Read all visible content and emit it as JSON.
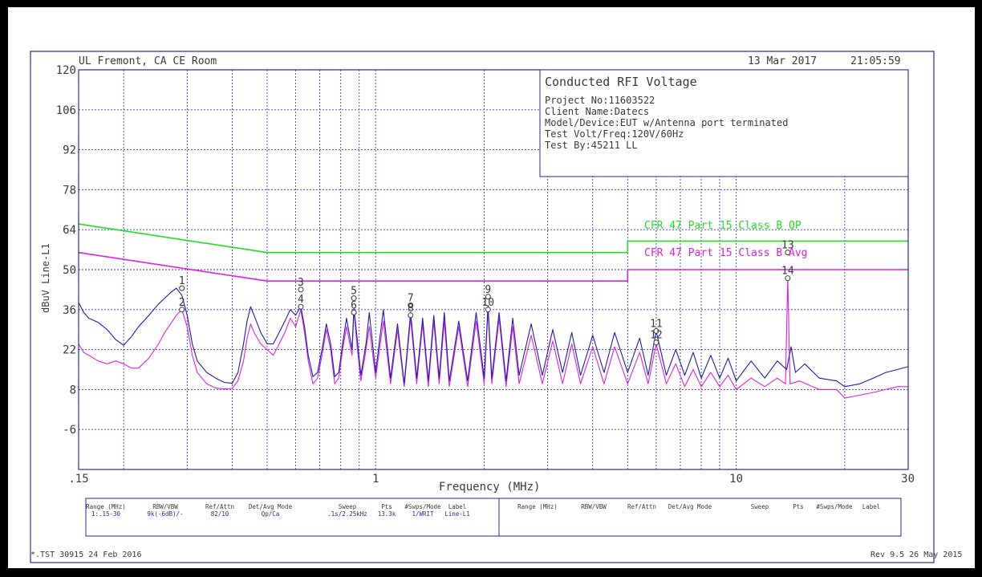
{
  "header": {
    "location": "UL Fremont, CA CE Room",
    "date": "13 Mar 2017",
    "time": "21:05:59"
  },
  "info_box": {
    "title": "Conducted RFI Voltage",
    "lines": [
      "Project No:11603522",
      "Client Name:Datecs",
      "Model/Device:EUT w/Antenna port terminated",
      "Test Volt/Freq:120V/60Hz",
      "Test By:45211 LL"
    ]
  },
  "footer": {
    "left": "*.TST 30915 24 Feb 2016",
    "right": "Rev 9.5 26 May 2015"
  },
  "settings_table": {
    "headers": [
      "Range (MHz)",
      "RBW/VBW",
      "Ref/Attn",
      "Det/Avg Mode",
      "Sweep",
      "Pts",
      "#Swps/Mode",
      "Label"
    ],
    "row": [
      "1:.15-30",
      "9k(-6dB)/-",
      "82/10",
      "Qp/Ca",
      ".1s/2.25kHz",
      "13.3k",
      "1/WRIT",
      "Line-L1"
    ],
    "headers_right": [
      "Range (MHz)",
      "RBW/VBW",
      "Ref/Attn",
      "Det/Avg Mode",
      "Sweep",
      "Pts",
      "#Swps/Mode",
      "Label"
    ]
  },
  "colors": {
    "background": "#ffffff",
    "frame": "#2a2a9a",
    "grid": "#3c3ccf",
    "qp_trace": "#1c1cb4",
    "avg_trace": "#e020e0",
    "qp_limit": "#1fe01f",
    "avg_limit": "#e020e0",
    "text": "#3a3a3a"
  },
  "chart_data": {
    "type": "line",
    "xlabel": "Frequency (MHz)",
    "ylabel": "dBuV Line-L1",
    "xscale": "log",
    "xlim": [
      0.15,
      30
    ],
    "ylim": [
      -20,
      120
    ],
    "x_tick_labels": [
      ".15",
      "1",
      "10",
      "30"
    ],
    "x_tick_values": [
      0.15,
      1,
      10,
      30
    ],
    "y_ticks": [
      -6,
      8,
      22,
      36,
      50,
      64,
      78,
      92,
      106,
      120
    ],
    "grid": true,
    "limit_lines": [
      {
        "name": "CFR 47 Part 15 Class B QP",
        "points": [
          [
            0.15,
            66
          ],
          [
            0.5,
            56
          ],
          [
            5,
            56
          ],
          [
            5,
            60
          ],
          [
            30,
            60
          ]
        ]
      },
      {
        "name": "CFR 47 Part 15 Class B Avg",
        "points": [
          [
            0.15,
            56
          ],
          [
            0.5,
            46
          ],
          [
            5,
            46
          ],
          [
            5,
            50
          ],
          [
            30,
            50
          ]
        ]
      }
    ],
    "series": [
      {
        "points": [
          [
            0.15,
            38.5
          ],
          [
            0.155,
            35
          ],
          [
            0.16,
            33
          ],
          [
            0.17,
            31.5
          ],
          [
            0.18,
            29
          ],
          [
            0.19,
            25.5
          ],
          [
            0.2,
            23.5
          ],
          [
            0.21,
            26.5
          ],
          [
            0.22,
            30
          ],
          [
            0.235,
            34
          ],
          [
            0.25,
            38
          ],
          [
            0.26,
            40
          ],
          [
            0.27,
            42
          ],
          [
            0.28,
            43.5
          ],
          [
            0.29,
            41
          ],
          [
            0.3,
            34
          ],
          [
            0.31,
            24
          ],
          [
            0.32,
            18
          ],
          [
            0.34,
            14
          ],
          [
            0.36,
            12
          ],
          [
            0.38,
            10.5
          ],
          [
            0.4,
            10.2
          ],
          [
            0.415,
            14
          ],
          [
            0.43,
            24
          ],
          [
            0.44,
            32
          ],
          [
            0.45,
            37
          ],
          [
            0.46,
            34
          ],
          [
            0.48,
            28
          ],
          [
            0.5,
            24
          ],
          [
            0.52,
            24
          ],
          [
            0.54,
            28
          ],
          [
            0.56,
            32
          ],
          [
            0.58,
            36
          ],
          [
            0.6,
            34
          ],
          [
            0.62,
            37.2
          ],
          [
            0.635,
            30
          ],
          [
            0.65,
            20
          ],
          [
            0.67,
            12.5
          ],
          [
            0.69,
            14
          ],
          [
            0.71,
            22
          ],
          [
            0.73,
            31
          ],
          [
            0.75,
            24
          ],
          [
            0.77,
            12.5
          ],
          [
            0.79,
            14
          ],
          [
            0.81,
            24
          ],
          [
            0.83,
            33
          ],
          [
            0.86,
            22
          ],
          [
            0.87,
            36.5
          ],
          [
            0.89,
            25
          ],
          [
            0.91,
            13
          ],
          [
            0.94,
            24
          ],
          [
            0.96,
            35
          ],
          [
            1,
            14
          ],
          [
            1.05,
            36
          ],
          [
            1.1,
            12
          ],
          [
            1.15,
            31
          ],
          [
            1.2,
            10
          ],
          [
            1.25,
            35
          ],
          [
            1.3,
            12
          ],
          [
            1.35,
            33
          ],
          [
            1.4,
            11
          ],
          [
            1.45,
            34
          ],
          [
            1.5,
            12
          ],
          [
            1.55,
            35
          ],
          [
            1.6,
            11
          ],
          [
            1.7,
            32
          ],
          [
            1.8,
            11
          ],
          [
            1.9,
            35
          ],
          [
            2,
            12
          ],
          [
            2.05,
            37.5
          ],
          [
            2.1,
            12
          ],
          [
            2.2,
            35
          ],
          [
            2.3,
            11
          ],
          [
            2.4,
            33
          ],
          [
            2.5,
            13
          ],
          [
            2.7,
            31
          ],
          [
            2.9,
            13
          ],
          [
            3.1,
            29
          ],
          [
            3.3,
            14
          ],
          [
            3.5,
            28
          ],
          [
            3.7,
            13
          ],
          [
            4,
            27
          ],
          [
            4.3,
            14
          ],
          [
            4.6,
            28
          ],
          [
            5,
            14
          ],
          [
            5.4,
            26
          ],
          [
            5.7,
            13
          ],
          [
            6,
            28.5
          ],
          [
            6.4,
            13
          ],
          [
            6.8,
            22
          ],
          [
            7.2,
            13
          ],
          [
            7.6,
            21
          ],
          [
            8,
            12
          ],
          [
            8.5,
            20
          ],
          [
            9,
            12
          ],
          [
            9.5,
            19
          ],
          [
            10,
            11
          ],
          [
            11,
            18
          ],
          [
            12,
            12
          ],
          [
            13,
            18
          ],
          [
            13.8,
            15
          ],
          [
            14.2,
            23
          ],
          [
            14.6,
            14
          ],
          [
            15.5,
            17
          ],
          [
            17,
            12
          ],
          [
            19,
            11
          ],
          [
            20,
            9
          ],
          [
            22,
            10
          ],
          [
            24,
            12
          ],
          [
            26,
            14
          ],
          [
            28,
            15
          ],
          [
            30,
            16
          ]
        ]
      },
      {
        "points": [
          [
            0.15,
            24
          ],
          [
            0.155,
            21
          ],
          [
            0.16,
            20
          ],
          [
            0.17,
            18
          ],
          [
            0.18,
            17
          ],
          [
            0.19,
            18
          ],
          [
            0.2,
            17
          ],
          [
            0.21,
            15.5
          ],
          [
            0.22,
            15.5
          ],
          [
            0.235,
            19
          ],
          [
            0.25,
            24
          ],
          [
            0.26,
            28
          ],
          [
            0.27,
            31
          ],
          [
            0.28,
            34
          ],
          [
            0.29,
            36
          ],
          [
            0.3,
            30
          ],
          [
            0.31,
            20
          ],
          [
            0.32,
            14
          ],
          [
            0.34,
            10
          ],
          [
            0.36,
            8.5
          ],
          [
            0.38,
            8.2
          ],
          [
            0.4,
            8.4
          ],
          [
            0.415,
            11
          ],
          [
            0.43,
            18
          ],
          [
            0.44,
            26
          ],
          [
            0.45,
            31
          ],
          [
            0.46,
            28
          ],
          [
            0.48,
            24
          ],
          [
            0.5,
            22
          ],
          [
            0.52,
            20
          ],
          [
            0.54,
            24
          ],
          [
            0.56,
            28
          ],
          [
            0.58,
            33
          ],
          [
            0.6,
            30
          ],
          [
            0.62,
            36
          ],
          [
            0.635,
            28
          ],
          [
            0.65,
            18
          ],
          [
            0.67,
            10
          ],
          [
            0.69,
            12
          ],
          [
            0.71,
            20
          ],
          [
            0.73,
            29
          ],
          [
            0.75,
            22
          ],
          [
            0.77,
            10
          ],
          [
            0.79,
            12
          ],
          [
            0.81,
            22
          ],
          [
            0.83,
            30
          ],
          [
            0.86,
            20
          ],
          [
            0.87,
            36
          ],
          [
            0.89,
            22
          ],
          [
            0.91,
            11
          ],
          [
            0.94,
            22
          ],
          [
            0.96,
            30
          ],
          [
            1,
            12
          ],
          [
            1.05,
            32
          ],
          [
            1.1,
            10
          ],
          [
            1.15,
            29
          ],
          [
            1.2,
            9
          ],
          [
            1.25,
            33
          ],
          [
            1.3,
            10
          ],
          [
            1.35,
            31
          ],
          [
            1.4,
            9
          ],
          [
            1.45,
            32
          ],
          [
            1.5,
            10
          ],
          [
            1.55,
            32
          ],
          [
            1.6,
            9
          ],
          [
            1.7,
            30
          ],
          [
            1.8,
            9
          ],
          [
            1.9,
            32
          ],
          [
            2,
            10
          ],
          [
            2.05,
            36
          ],
          [
            2.1,
            10
          ],
          [
            2.2,
            33
          ],
          [
            2.3,
            9
          ],
          [
            2.4,
            30
          ],
          [
            2.5,
            10
          ],
          [
            2.7,
            27
          ],
          [
            2.9,
            10
          ],
          [
            3.1,
            25
          ],
          [
            3.3,
            10
          ],
          [
            3.5,
            24
          ],
          [
            3.7,
            10
          ],
          [
            4,
            23
          ],
          [
            4.3,
            10
          ],
          [
            4.6,
            23
          ],
          [
            5,
            10
          ],
          [
            5.4,
            21
          ],
          [
            5.7,
            10
          ],
          [
            6,
            24
          ],
          [
            6.4,
            10
          ],
          [
            6.8,
            17
          ],
          [
            7.2,
            9
          ],
          [
            7.6,
            15
          ],
          [
            8,
            9
          ],
          [
            8.5,
            14
          ],
          [
            9,
            9
          ],
          [
            9.5,
            13
          ],
          [
            10,
            8
          ],
          [
            11,
            12
          ],
          [
            12,
            9
          ],
          [
            13,
            12
          ],
          [
            13.7,
            10
          ],
          [
            13.9,
            47
          ],
          [
            14.1,
            10
          ],
          [
            15,
            11
          ],
          [
            17,
            8
          ],
          [
            19,
            8
          ],
          [
            20,
            5
          ],
          [
            22,
            6
          ],
          [
            24,
            7
          ],
          [
            26,
            8
          ],
          [
            28,
            9
          ],
          [
            30,
            9
          ]
        ]
      }
    ],
    "markers": [
      {
        "label": "1",
        "x": 0.29,
        "y": 43.5
      },
      {
        "label": "2",
        "x": 0.29,
        "y": 36
      },
      {
        "label": "3",
        "x": 0.62,
        "y": 43
      },
      {
        "label": "4",
        "x": 0.62,
        "y": 37
      },
      {
        "label": "5",
        "x": 0.87,
        "y": 40
      },
      {
        "label": "6",
        "x": 0.87,
        "y": 35
      },
      {
        "label": "7",
        "x": 1.25,
        "y": 37.5
      },
      {
        "label": "8",
        "x": 1.25,
        "y": 34
      },
      {
        "label": "9",
        "x": 2.05,
        "y": 40.5
      },
      {
        "label": "10",
        "x": 2.05,
        "y": 36
      },
      {
        "label": "11",
        "x": 6,
        "y": 28.5
      },
      {
        "label": "12",
        "x": 6,
        "y": 24.5
      },
      {
        "label": "13",
        "x": 13.9,
        "y": 56
      },
      {
        "label": "14",
        "x": 13.9,
        "y": 47
      }
    ]
  }
}
